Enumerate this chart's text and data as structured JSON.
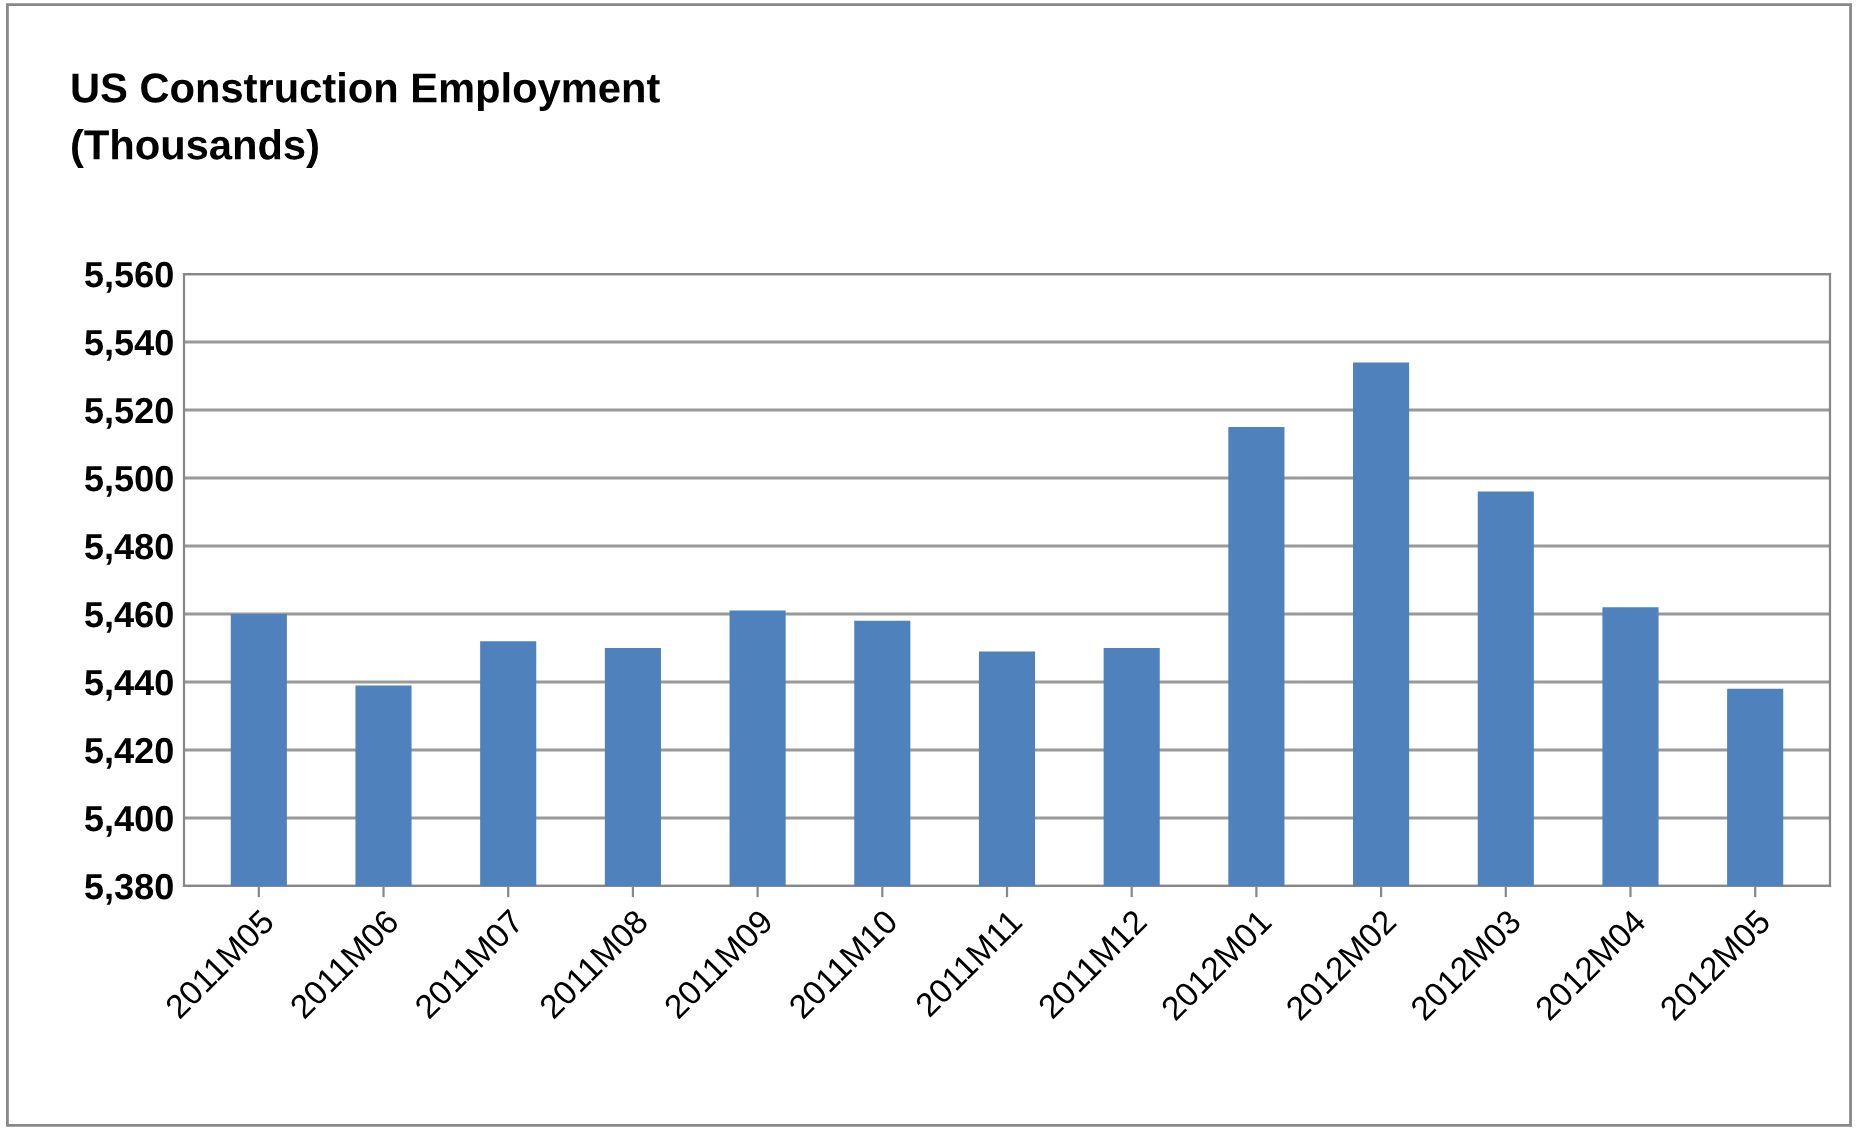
{
  "chart_data": {
    "type": "bar",
    "title": "US Construction Employment\n(Thousands)",
    "categories": [
      "2011M05",
      "2011M06",
      "2011M07",
      "2011M08",
      "2011M09",
      "2011M10",
      "2011M11",
      "2011M12",
      "2012M01",
      "2012M02",
      "2012M03",
      "2012M04",
      "2012M05"
    ],
    "values": [
      5460,
      5439,
      5452,
      5450,
      5461,
      5458,
      5449,
      5450,
      5515,
      5534,
      5496,
      5462,
      5438
    ],
    "color": "#4f81bd",
    "ylim": [
      5380,
      5560
    ],
    "yticks": [
      {
        "value": 5380,
        "label": "5,380"
      },
      {
        "value": 5400,
        "label": "5,400"
      },
      {
        "value": 5420,
        "label": "5,420"
      },
      {
        "value": 5440,
        "label": "5,440"
      },
      {
        "value": 5460,
        "label": "5,460"
      },
      {
        "value": 5480,
        "label": "5,480"
      },
      {
        "value": 5500,
        "label": "5,500"
      },
      {
        "value": 5520,
        "label": "5,520"
      },
      {
        "value": 5540,
        "label": "5,540"
      },
      {
        "value": 5560,
        "label": "5,560"
      }
    ],
    "grid": "y"
  }
}
